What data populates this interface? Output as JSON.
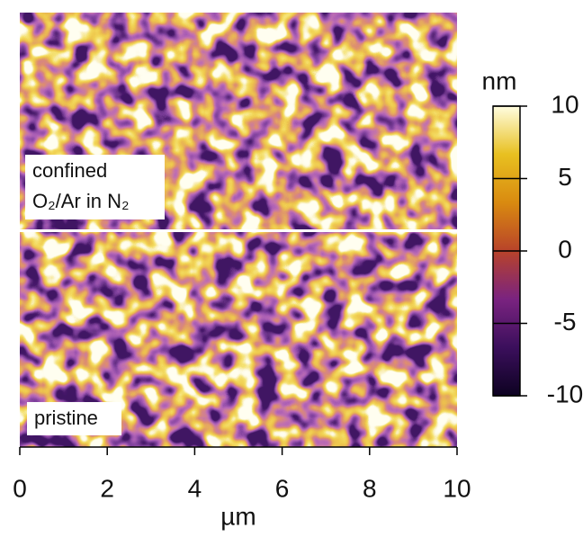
{
  "chart_data": {
    "type": "heatmap",
    "annotations": [
      "confined",
      "O₂/Ar in N₂",
      "pristine"
    ],
    "xlabel": "µm",
    "xlim": [
      0,
      10
    ],
    "xticks": [
      0,
      2,
      4,
      6,
      8,
      10
    ],
    "colorbar": {
      "label": "nm",
      "lim": [
        -10,
        10
      ],
      "ticks": [
        10,
        5,
        0,
        -5,
        -10
      ],
      "colors": [
        "#0d0221",
        "#3b0f5c",
        "#7a2380",
        "#b8432a",
        "#d98a10",
        "#e8c020",
        "#fffde0"
      ]
    }
  }
}
